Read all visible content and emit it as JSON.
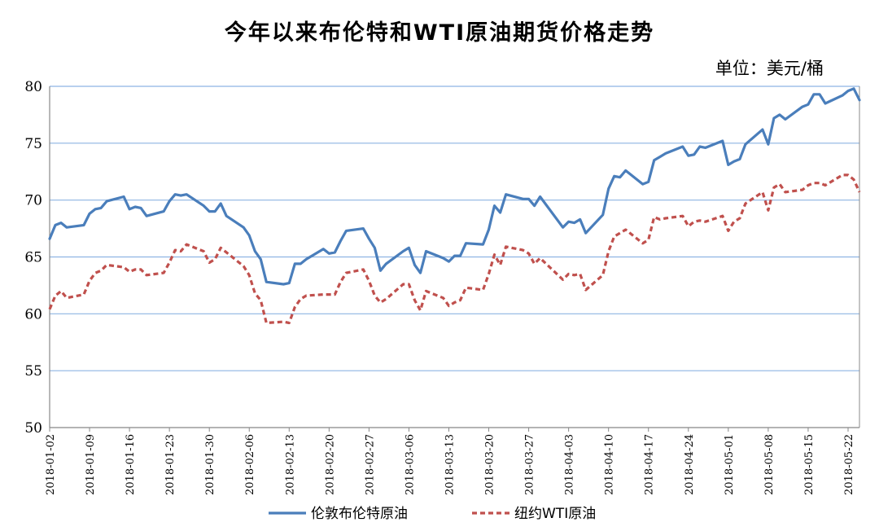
{
  "chart_data": {
    "type": "line",
    "title": "今年以来布伦特和WTI原油期货价格走势",
    "unit_label": "单位：美元/桶",
    "ylim": [
      50,
      80
    ],
    "y_ticks": [
      "50",
      "55",
      "60",
      "65",
      "70",
      "75",
      "80"
    ],
    "x_ticks": [
      "2018-01-02",
      "2018-01-09",
      "2018-01-16",
      "2018-01-23",
      "2018-01-30",
      "2018-02-06",
      "2018-02-13",
      "2018-02-20",
      "2018-02-27",
      "2018-03-06",
      "2018-03-13",
      "2018-03-20",
      "2018-03-27",
      "2018-04-03",
      "2018-04-10",
      "2018-04-17",
      "2018-04-24",
      "2018-05-01",
      "2018-05-08",
      "2018-05-15",
      "2018-05-22"
    ],
    "grid": "horizontal",
    "legend_position": "bottom",
    "colors": {
      "brent": "#4a7ebb",
      "wti": "#c0504d",
      "grid": "#8eb4e3",
      "axis": "#888888"
    },
    "series": [
      {
        "name": "伦敦布伦特原油",
        "style": "solid",
        "x": [
          "2018-01-02",
          "2018-01-03",
          "2018-01-04",
          "2018-01-05",
          "2018-01-08",
          "2018-01-09",
          "2018-01-10",
          "2018-01-11",
          "2018-01-12",
          "2018-01-15",
          "2018-01-16",
          "2018-01-17",
          "2018-01-18",
          "2018-01-19",
          "2018-01-22",
          "2018-01-23",
          "2018-01-24",
          "2018-01-25",
          "2018-01-26",
          "2018-01-29",
          "2018-01-30",
          "2018-01-31",
          "2018-02-01",
          "2018-02-02",
          "2018-02-05",
          "2018-02-06",
          "2018-02-07",
          "2018-02-08",
          "2018-02-09",
          "2018-02-12",
          "2018-02-13",
          "2018-02-14",
          "2018-02-15",
          "2018-02-16",
          "2018-02-19",
          "2018-02-20",
          "2018-02-21",
          "2018-02-22",
          "2018-02-23",
          "2018-02-26",
          "2018-02-27",
          "2018-02-28",
          "2018-03-01",
          "2018-03-02",
          "2018-03-05",
          "2018-03-06",
          "2018-03-07",
          "2018-03-08",
          "2018-03-09",
          "2018-03-12",
          "2018-03-13",
          "2018-03-14",
          "2018-03-15",
          "2018-03-16",
          "2018-03-19",
          "2018-03-20",
          "2018-03-21",
          "2018-03-22",
          "2018-03-23",
          "2018-03-26",
          "2018-03-27",
          "2018-03-28",
          "2018-03-29",
          "2018-04-02",
          "2018-04-03",
          "2018-04-04",
          "2018-04-05",
          "2018-04-06",
          "2018-04-09",
          "2018-04-10",
          "2018-04-11",
          "2018-04-12",
          "2018-04-13",
          "2018-04-16",
          "2018-04-17",
          "2018-04-18",
          "2018-04-19",
          "2018-04-20",
          "2018-04-23",
          "2018-04-24",
          "2018-04-25",
          "2018-04-26",
          "2018-04-27",
          "2018-04-30",
          "2018-05-01",
          "2018-05-02",
          "2018-05-03",
          "2018-05-04",
          "2018-05-07",
          "2018-05-08",
          "2018-05-09",
          "2018-05-10",
          "2018-05-11",
          "2018-05-14",
          "2018-05-15",
          "2018-05-16",
          "2018-05-17",
          "2018-05-18",
          "2018-05-21",
          "2018-05-22",
          "2018-05-23",
          "2018-05-24"
        ],
        "values": [
          66.6,
          67.8,
          68.0,
          67.6,
          67.8,
          68.8,
          69.2,
          69.3,
          69.9,
          70.3,
          69.2,
          69.4,
          69.3,
          68.6,
          69.0,
          69.9,
          70.5,
          70.4,
          70.5,
          69.5,
          69.0,
          69.0,
          69.7,
          68.6,
          67.6,
          66.9,
          65.5,
          64.8,
          62.8,
          62.6,
          62.7,
          64.4,
          64.4,
          64.8,
          65.7,
          65.3,
          65.4,
          66.4,
          67.3,
          67.5,
          66.6,
          65.8,
          63.8,
          64.4,
          65.5,
          65.8,
          64.3,
          63.6,
          65.5,
          64.9,
          64.6,
          65.1,
          65.1,
          66.2,
          66.1,
          67.4,
          69.5,
          68.9,
          70.5,
          70.1,
          70.1,
          69.5,
          70.3,
          67.6,
          68.1,
          68.0,
          68.3,
          67.1,
          68.7,
          71.0,
          72.1,
          72.0,
          72.6,
          71.4,
          71.6,
          73.5,
          73.8,
          74.1,
          74.7,
          73.9,
          74.0,
          74.7,
          74.6,
          75.2,
          73.1,
          73.4,
          73.6,
          74.9,
          76.2,
          74.9,
          77.2,
          77.5,
          77.1,
          78.2,
          78.4,
          79.3,
          79.3,
          78.5,
          79.2,
          79.6,
          79.8,
          78.8
        ]
      },
      {
        "name": "纽约WTI原油",
        "style": "dashed",
        "x": [
          "2018-01-02",
          "2018-01-03",
          "2018-01-04",
          "2018-01-05",
          "2018-01-08",
          "2018-01-09",
          "2018-01-10",
          "2018-01-11",
          "2018-01-12",
          "2018-01-15",
          "2018-01-16",
          "2018-01-17",
          "2018-01-18",
          "2018-01-19",
          "2018-01-22",
          "2018-01-23",
          "2018-01-24",
          "2018-01-25",
          "2018-01-26",
          "2018-01-29",
          "2018-01-30",
          "2018-01-31",
          "2018-02-01",
          "2018-02-02",
          "2018-02-05",
          "2018-02-06",
          "2018-02-07",
          "2018-02-08",
          "2018-02-09",
          "2018-02-12",
          "2018-02-13",
          "2018-02-14",
          "2018-02-15",
          "2018-02-16",
          "2018-02-19",
          "2018-02-20",
          "2018-02-21",
          "2018-02-22",
          "2018-02-23",
          "2018-02-26",
          "2018-02-27",
          "2018-02-28",
          "2018-03-01",
          "2018-03-02",
          "2018-03-05",
          "2018-03-06",
          "2018-03-07",
          "2018-03-08",
          "2018-03-09",
          "2018-03-12",
          "2018-03-13",
          "2018-03-14",
          "2018-03-15",
          "2018-03-16",
          "2018-03-19",
          "2018-03-20",
          "2018-03-21",
          "2018-03-22",
          "2018-03-23",
          "2018-03-26",
          "2018-03-27",
          "2018-03-28",
          "2018-03-29",
          "2018-04-02",
          "2018-04-03",
          "2018-04-04",
          "2018-04-05",
          "2018-04-06",
          "2018-04-09",
          "2018-04-10",
          "2018-04-11",
          "2018-04-12",
          "2018-04-13",
          "2018-04-16",
          "2018-04-17",
          "2018-04-18",
          "2018-04-19",
          "2018-04-20",
          "2018-04-23",
          "2018-04-24",
          "2018-04-25",
          "2018-04-26",
          "2018-04-27",
          "2018-04-30",
          "2018-05-01",
          "2018-05-02",
          "2018-05-03",
          "2018-05-04",
          "2018-05-07",
          "2018-05-08",
          "2018-05-09",
          "2018-05-10",
          "2018-05-11",
          "2018-05-14",
          "2018-05-15",
          "2018-05-16",
          "2018-05-17",
          "2018-05-18",
          "2018-05-21",
          "2018-05-22",
          "2018-05-23",
          "2018-05-24"
        ],
        "values": [
          60.4,
          61.6,
          62.0,
          61.4,
          61.7,
          62.9,
          63.6,
          63.8,
          64.3,
          64.1,
          63.7,
          63.9,
          63.9,
          63.4,
          63.6,
          64.5,
          65.6,
          65.5,
          66.1,
          65.5,
          64.5,
          64.8,
          65.8,
          65.4,
          64.2,
          63.4,
          61.8,
          61.2,
          59.2,
          59.3,
          59.2,
          60.6,
          61.3,
          61.6,
          61.7,
          61.7,
          61.7,
          62.8,
          63.6,
          63.9,
          62.9,
          61.6,
          61.0,
          61.3,
          62.6,
          62.6,
          61.2,
          60.3,
          62.0,
          61.4,
          60.7,
          61.0,
          61.2,
          62.3,
          62.1,
          63.5,
          65.2,
          64.3,
          65.9,
          65.6,
          65.3,
          64.4,
          64.9,
          63.0,
          63.5,
          63.4,
          63.5,
          62.1,
          63.4,
          65.5,
          66.8,
          67.1,
          67.4,
          66.2,
          66.5,
          68.5,
          68.3,
          68.4,
          68.6,
          67.7,
          68.1,
          68.2,
          68.1,
          68.6,
          67.3,
          68.1,
          68.4,
          69.7,
          70.7,
          69.1,
          71.1,
          71.4,
          70.7,
          70.9,
          71.3,
          71.5,
          71.5,
          71.3,
          72.2,
          72.2,
          71.8,
          70.7
        ]
      }
    ]
  }
}
